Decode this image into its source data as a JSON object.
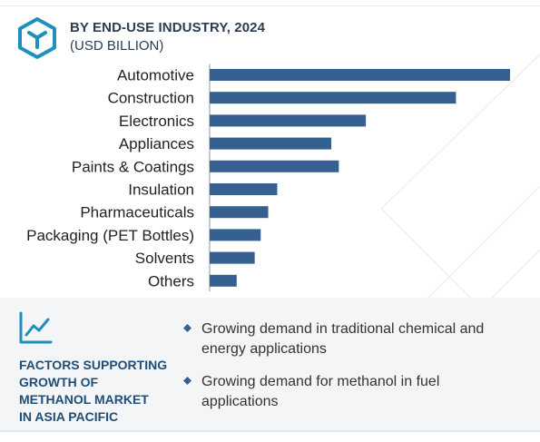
{
  "header": {
    "title": "BY END-USE INDUSTRY, 2024",
    "subtitle": "(USD BILLION)"
  },
  "colors": {
    "bar": "#36608f",
    "title": "#2b3d52",
    "accent": "#1f8fbf",
    "factors_title": "#1f4e79",
    "panel_bg": "#f4f5f7"
  },
  "icons": {
    "logo": "cube-hexagon-icon",
    "factors": "trend-chart-icon",
    "bullet": "diamond-bullet-icon"
  },
  "chart_data": {
    "type": "bar",
    "orientation": "horizontal",
    "categories": [
      "Automotive",
      "Construction",
      "Electronics",
      "Appliances",
      "Paints & Coatings",
      "Insulation",
      "Pharmaceuticals",
      "Packaging (PET Bottles)",
      "Solvents",
      "Others"
    ],
    "values": [
      100,
      82,
      52,
      40.5,
      43,
      22.5,
      19.5,
      17,
      15,
      9
    ],
    "value_scale": "relative (no axis or data labels shown)",
    "title": "BY END-USE INDUSTRY, 2024",
    "subtitle": "(USD BILLION)",
    "grid": false,
    "legend": "none"
  },
  "factors": {
    "title_lines": [
      "FACTORS SUPPORTING",
      "GROWTH OF",
      "METHANOL MARKET",
      "IN ASIA PACIFIC"
    ],
    "bullets": [
      "Growing demand in traditional chemical and energy applications",
      "Growing demand for methanol in fuel applications"
    ]
  }
}
